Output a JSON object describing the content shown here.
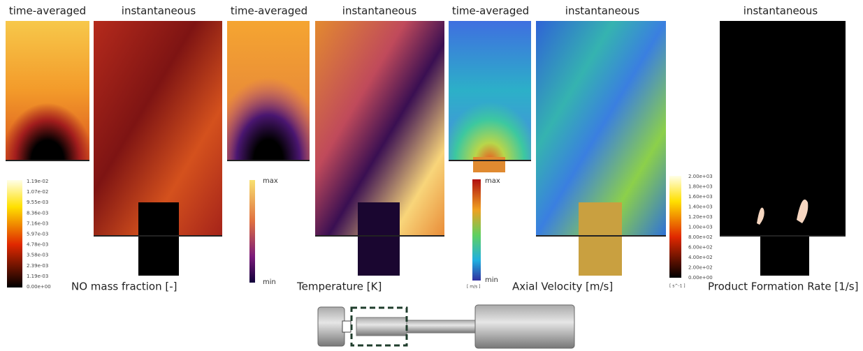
{
  "headers": [
    "time-averaged",
    "instantaneous",
    "time-averaged",
    "instantaneous",
    "time-averaged",
    "instantaneous",
    "instantaneous"
  ],
  "captions": [
    "NO mass fraction [-]",
    "Temperature [K]",
    "Axial Velocity [m/s]",
    "Product Formation Rate [1/s]"
  ],
  "colorbars": [
    {
      "ticks": [
        "1.19e-02",
        "1.07e-02",
        "9.55e-03",
        "8.36e-03",
        "7.16e-03",
        "5.97e-03",
        "4.78e-03",
        "3.58e-03",
        "2.39e-03",
        "1.19e-03",
        "0.00e+00"
      ]
    },
    {
      "ticks": [
        "max",
        "min"
      ]
    },
    {
      "ticks": [
        "max",
        "min"
      ],
      "unit": "[ m/s ]"
    },
    {
      "ticks": [
        "2.00e+03",
        "1.80e+03",
        "1.60e+03",
        "1.40e+03",
        "1.20e+03",
        "1.00e+03",
        "8.00e+02",
        "6.00e+02",
        "4.00e+02",
        "2.00e+02",
        "0.00e+00"
      ],
      "unit": "[ s^-1 ]"
    }
  ]
}
